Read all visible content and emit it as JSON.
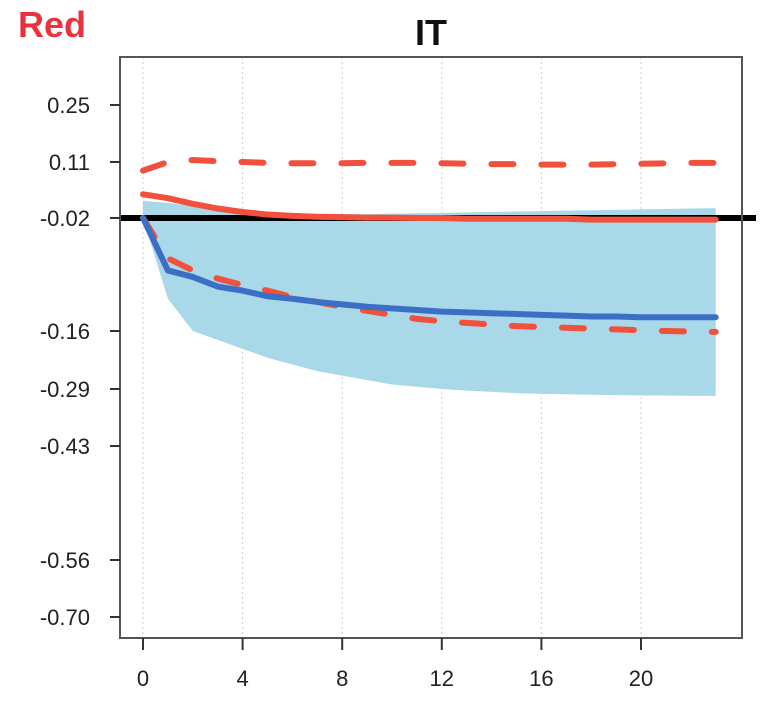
{
  "corner_label": "Red",
  "chart_data": {
    "type": "line",
    "title": "IT",
    "xlabel": "",
    "ylabel": "",
    "x_ticks": [
      0,
      4,
      8,
      12,
      16,
      20
    ],
    "y_ticks": [
      0.25,
      0.11,
      -0.02,
      -0.16,
      -0.29,
      -0.43,
      -0.56,
      -0.7
    ],
    "y_tick_labels": [
      "0.25",
      "0.11",
      "-0.02",
      "-0.16",
      "-0.29",
      "-0.43",
      "-0.56",
      "-0.70"
    ],
    "xlim": [
      -1,
      24
    ],
    "ylim": [
      -0.75,
      0.4
    ],
    "grid": "vertical-dotted",
    "zero_line": -0.02,
    "x": [
      0,
      1,
      2,
      3,
      4,
      5,
      6,
      7,
      8,
      9,
      10,
      11,
      12,
      13,
      14,
      15,
      16,
      17,
      18,
      19,
      20,
      21,
      22,
      23
    ],
    "series": [
      {
        "style": "solid",
        "color": "#f0503c",
        "values": [
          0.035,
          0.026,
          0.013,
          0.002,
          -0.006,
          -0.012,
          -0.015,
          -0.017,
          -0.018,
          -0.019,
          -0.019,
          -0.02,
          -0.02,
          -0.021,
          -0.021,
          -0.021,
          -0.021,
          -0.021,
          -0.022,
          -0.022,
          -0.022,
          -0.022,
          -0.022,
          -0.022
        ]
      },
      {
        "style": "dashed",
        "color": "#f0503c",
        "values": [
          0.09,
          0.11,
          0.115,
          0.112,
          0.11,
          0.108,
          0.107,
          0.107,
          0.107,
          0.108,
          0.108,
          0.108,
          0.107,
          0.106,
          0.105,
          0.105,
          0.104,
          0.104,
          0.104,
          0.105,
          0.106,
          0.107,
          0.108,
          0.108
        ]
      },
      {
        "style": "dashed",
        "color": "#f0503c",
        "values": [
          -0.02,
          -0.07,
          -0.085,
          -0.095,
          -0.103,
          -0.11,
          -0.118,
          -0.124,
          -0.13,
          -0.135,
          -0.14,
          -0.145,
          -0.148,
          -0.15,
          -0.152,
          -0.154,
          -0.155,
          -0.156,
          -0.157,
          -0.158,
          -0.159,
          -0.16,
          -0.161,
          -0.162
        ]
      },
      {
        "style": "solid",
        "color": "#3a6fc4",
        "values": [
          -0.02,
          -0.085,
          -0.093,
          -0.105,
          -0.11,
          -0.117,
          -0.12,
          -0.124,
          -0.127,
          -0.13,
          -0.132,
          -0.134,
          -0.136,
          -0.137,
          -0.138,
          -0.139,
          -0.14,
          -0.141,
          -0.142,
          -0.142,
          -0.143,
          -0.143,
          -0.143,
          -0.143
        ]
      }
    ],
    "band": {
      "color": "#a9d8e8",
      "upper": [
        0.02,
        0.015,
        0.008,
        0.001,
        -0.004,
        -0.008,
        -0.01,
        -0.011,
        -0.011,
        -0.011,
        -0.01,
        -0.009,
        -0.008,
        -0.007,
        -0.006,
        -0.005,
        -0.004,
        -0.003,
        -0.002,
        -0.001,
        0.0,
        0.001,
        0.002,
        0.003
      ],
      "lower": [
        -0.02,
        -0.12,
        -0.16,
        -0.18,
        -0.2,
        -0.22,
        -0.235,
        -0.25,
        -0.26,
        -0.27,
        -0.28,
        -0.285,
        -0.29,
        -0.294,
        -0.297,
        -0.3,
        -0.302,
        -0.303,
        -0.304,
        -0.305,
        -0.306,
        -0.306,
        -0.307,
        -0.307
      ]
    }
  }
}
